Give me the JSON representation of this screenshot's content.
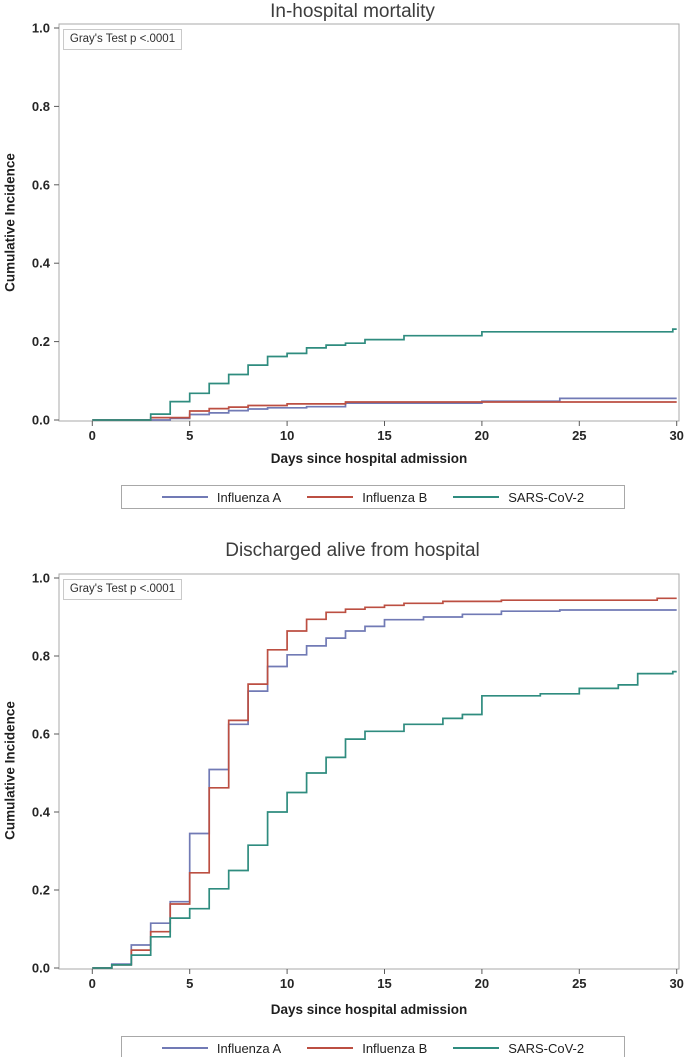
{
  "chart_data": [
    {
      "type": "line",
      "subtype": "step",
      "title": "In-hospital mortality",
      "xlabel": "Days since hospital admission",
      "ylabel": "Cumulative Incidence",
      "annotation": "Gray's Test p <.0001",
      "xlim": [
        0,
        30
      ],
      "ylim": [
        0,
        1
      ],
      "xticks": [
        0,
        5,
        10,
        15,
        20,
        25,
        30
      ],
      "yticks": [
        0.0,
        0.2,
        0.4,
        0.6,
        0.8,
        1.0
      ],
      "ytick_labels": [
        "0.0",
        "0.2",
        "0.4",
        "0.6",
        "0.8",
        "1.0"
      ],
      "grid": false,
      "legend_position": "bottom",
      "series": [
        {
          "name": "Influenza A",
          "color": "#717ab5",
          "points": [
            [
              0,
              0
            ],
            [
              4,
              0.004
            ],
            [
              5,
              0.014
            ],
            [
              6,
              0.018
            ],
            [
              7,
              0.024
            ],
            [
              8,
              0.028
            ],
            [
              9,
              0.031
            ],
            [
              11,
              0.034
            ],
            [
              13,
              0.043
            ],
            [
              20,
              0.048
            ],
            [
              24,
              0.055
            ]
          ]
        },
        {
          "name": "Influenza B",
          "color": "#bc4f42",
          "points": [
            [
              0,
              0
            ],
            [
              3,
              0.006
            ],
            [
              5,
              0.023
            ],
            [
              6,
              0.029
            ],
            [
              7,
              0.033
            ],
            [
              8,
              0.037
            ],
            [
              10,
              0.041
            ],
            [
              13,
              0.046
            ]
          ]
        },
        {
          "name": "SARS-CoV-2",
          "color": "#2f8c7f",
          "points": [
            [
              0,
              0
            ],
            [
              3,
              0.015
            ],
            [
              4,
              0.047
            ],
            [
              5,
              0.068
            ],
            [
              6,
              0.093
            ],
            [
              7,
              0.116
            ],
            [
              8,
              0.14
            ],
            [
              9,
              0.162
            ],
            [
              10,
              0.17
            ],
            [
              11,
              0.184
            ],
            [
              12,
              0.191
            ],
            [
              13,
              0.196
            ],
            [
              14,
              0.205
            ],
            [
              16,
              0.215
            ],
            [
              20,
              0.225
            ],
            [
              29.8,
              0.232
            ]
          ]
        }
      ]
    },
    {
      "type": "line",
      "subtype": "step",
      "title": "Discharged alive from hospital",
      "xlabel": "Days since hospital admission",
      "ylabel": "Cumulative Incidence",
      "annotation": "Gray's Test p <.0001",
      "xlim": [
        0,
        30
      ],
      "ylim": [
        0,
        1
      ],
      "xticks": [
        0,
        5,
        10,
        15,
        20,
        25,
        30
      ],
      "yticks": [
        0.0,
        0.2,
        0.4,
        0.6,
        0.8,
        1.0
      ],
      "ytick_labels": [
        "0.0",
        "0.2",
        "0.4",
        "0.6",
        "0.8",
        "1.0"
      ],
      "grid": false,
      "legend_position": "bottom",
      "series": [
        {
          "name": "Influenza A",
          "color": "#717ab5",
          "points": [
            [
              0,
              0
            ],
            [
              1,
              0.01
            ],
            [
              2,
              0.059
            ],
            [
              3,
              0.115
            ],
            [
              4,
              0.17
            ],
            [
              5,
              0.345
            ],
            [
              6,
              0.509
            ],
            [
              7,
              0.625
            ],
            [
              8,
              0.71
            ],
            [
              9,
              0.773
            ],
            [
              10,
              0.803
            ],
            [
              11,
              0.826
            ],
            [
              12,
              0.846
            ],
            [
              13,
              0.864
            ],
            [
              14,
              0.876
            ],
            [
              15,
              0.893
            ],
            [
              17,
              0.9
            ],
            [
              19,
              0.907
            ],
            [
              21,
              0.915
            ],
            [
              24,
              0.918
            ]
          ]
        },
        {
          "name": "Influenza B",
          "color": "#bc4f42",
          "points": [
            [
              0,
              0
            ],
            [
              1,
              0.008
            ],
            [
              2,
              0.046
            ],
            [
              3,
              0.093
            ],
            [
              4,
              0.164
            ],
            [
              5,
              0.244
            ],
            [
              6,
              0.462
            ],
            [
              7,
              0.635
            ],
            [
              8,
              0.728
            ],
            [
              9,
              0.816
            ],
            [
              10,
              0.864
            ],
            [
              11,
              0.894
            ],
            [
              12,
              0.912
            ],
            [
              13,
              0.92
            ],
            [
              14,
              0.925
            ],
            [
              15,
              0.93
            ],
            [
              16,
              0.935
            ],
            [
              18,
              0.94
            ],
            [
              21,
              0.943
            ],
            [
              29,
              0.948
            ]
          ]
        },
        {
          "name": "SARS-CoV-2",
          "color": "#2f8c7f",
          "points": [
            [
              0,
              0
            ],
            [
              1,
              0.008
            ],
            [
              2,
              0.033
            ],
            [
              3,
              0.08
            ],
            [
              4,
              0.128
            ],
            [
              5,
              0.152
            ],
            [
              6,
              0.203
            ],
            [
              7,
              0.25
            ],
            [
              8,
              0.315
            ],
            [
              9,
              0.4
            ],
            [
              10,
              0.45
            ],
            [
              11,
              0.5
            ],
            [
              12,
              0.54
            ],
            [
              13,
              0.587
            ],
            [
              14,
              0.607
            ],
            [
              16,
              0.625
            ],
            [
              18,
              0.64
            ],
            [
              19,
              0.65
            ],
            [
              20,
              0.698
            ],
            [
              23,
              0.703
            ],
            [
              25,
              0.717
            ],
            [
              27,
              0.726
            ],
            [
              28,
              0.755
            ],
            [
              29.8,
              0.76
            ]
          ]
        }
      ]
    }
  ]
}
